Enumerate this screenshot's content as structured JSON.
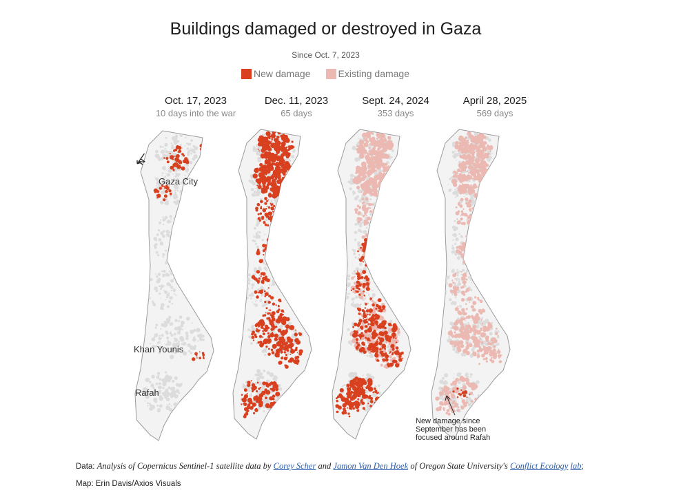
{
  "title": "Buildings damaged or destroyed in Gaza",
  "subtitle": "Since Oct. 7, 2023",
  "legend": {
    "new": {
      "label": "New damage",
      "color": "#d8401f"
    },
    "existing": {
      "label": "Existing damage",
      "color": "#ebb9b2"
    }
  },
  "panels": [
    {
      "date": "Oct. 17, 2023",
      "days": "10 days into the war"
    },
    {
      "date": "Dec. 11, 2023",
      "days": "65 days"
    },
    {
      "date": "Sept. 24, 2024",
      "days": "353 days"
    },
    {
      "date": "April 28, 2025",
      "days": "569 days"
    }
  ],
  "places": {
    "gaza_city": "Gaza City",
    "khan_younis": "Khan Younis",
    "rafah": "Rafah"
  },
  "north_label": "N",
  "annotation": [
    "New damage since",
    "September has been",
    "focused around Rafah"
  ],
  "footer": {
    "data_prefix": "Data:",
    "analysis_text": "Analysis of Copernicus Sentinel-1 satellite data by",
    "author1": "Corey Scher",
    "and_text": "and",
    "author2": "Jamon Van Den Hoek",
    "of_text": "of Oregon State University's",
    "lab_link_1": "Conflict Ecology",
    "lab_link_2": "lab",
    "credit": "; Map: Erin Davis/Axios Visuals"
  },
  "colors": {
    "built_up": "#dcdcdc",
    "outline": "#9a9a9a"
  }
}
